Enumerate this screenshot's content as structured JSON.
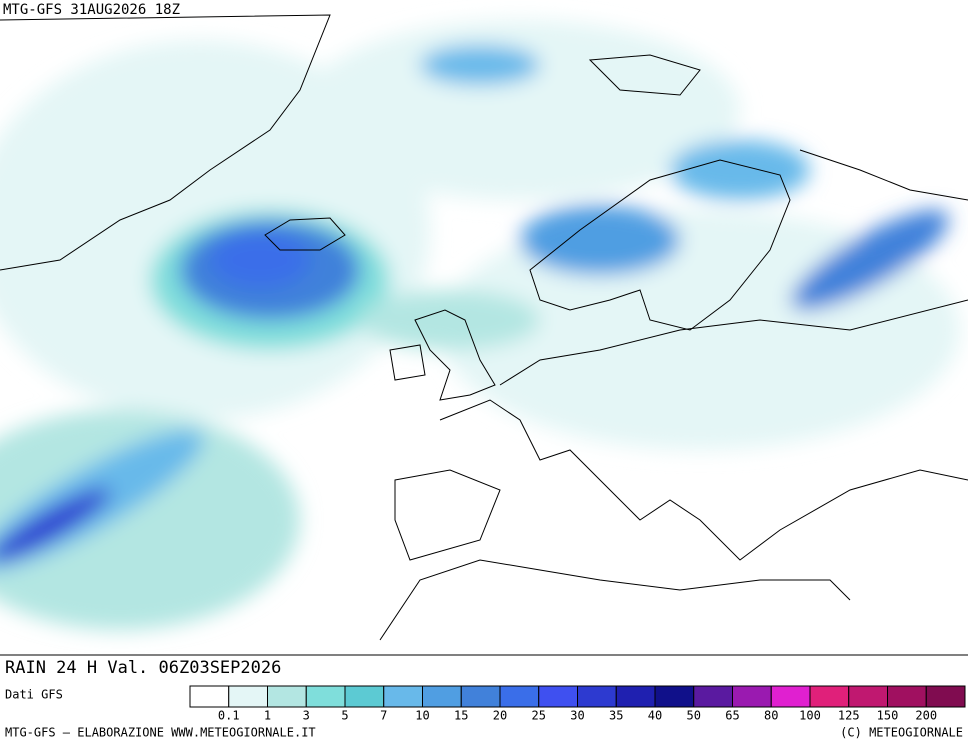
{
  "header": {
    "title": "MTG-GFS 31AUG2026 18Z"
  },
  "map": {
    "caption": "RAIN 24 H Val. 06Z03SEP2026"
  },
  "legend": {
    "source": "Dati GFS",
    "colors": [
      "#ffffff",
      "#e4f6f6",
      "#b3e6e2",
      "#7fdedb",
      "#5ccad3",
      "#68b9ea",
      "#509ee2",
      "#4181da",
      "#3a6ee9",
      "#3f50f0",
      "#2d3ad0",
      "#1f20b0",
      "#10108a",
      "#5a1aa0",
      "#9a1ab0",
      "#e020d0",
      "#e0207a",
      "#c01870",
      "#a01060",
      "#800c50"
    ],
    "thresholds": [
      0.1,
      1,
      3,
      5,
      7,
      10,
      15,
      20,
      25,
      30,
      35,
      40,
      50,
      65,
      80,
      100,
      125,
      150,
      200
    ]
  },
  "footer": {
    "credit": "MTG-GFS — ELABORAZIONE WWW.METEOGIORNALE.IT",
    "copyright": "(C) METEOGIORNALE"
  }
}
